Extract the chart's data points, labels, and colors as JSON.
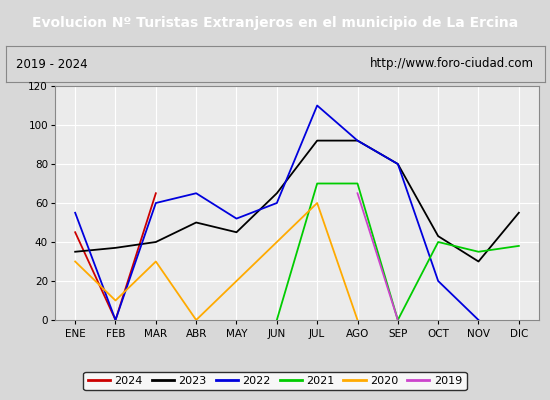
{
  "title": "Evolucion Nº Turistas Extranjeros en el municipio de La Ercina",
  "subtitle_left": "2019 - 2024",
  "subtitle_right": "http://www.foro-ciudad.com",
  "months": [
    "ENE",
    "FEB",
    "MAR",
    "ABR",
    "MAY",
    "JUN",
    "JUL",
    "AGO",
    "SEP",
    "OCT",
    "NOV",
    "DIC"
  ],
  "series": {
    "2024": {
      "color": "#cc0000",
      "data": [
        45,
        0,
        65,
        null,
        null,
        null,
        null,
        null,
        null,
        null,
        null,
        null
      ]
    },
    "2023": {
      "color": "#000000",
      "data": [
        35,
        37,
        40,
        50,
        45,
        65,
        92,
        92,
        80,
        43,
        30,
        55
      ]
    },
    "2022": {
      "color": "#0000dd",
      "data": [
        55,
        0,
        60,
        65,
        52,
        60,
        110,
        92,
        80,
        20,
        0,
        null
      ]
    },
    "2021": {
      "color": "#00cc00",
      "data": [
        null,
        null,
        null,
        null,
        null,
        0,
        70,
        70,
        0,
        40,
        35,
        38
      ]
    },
    "2020": {
      "color": "#ffaa00",
      "data": [
        30,
        10,
        30,
        0,
        null,
        null,
        60,
        0,
        null,
        null,
        null,
        null
      ]
    },
    "2019": {
      "color": "#cc44cc",
      "data": [
        null,
        null,
        null,
        null,
        null,
        null,
        null,
        65,
        0,
        null,
        null,
        null
      ]
    }
  },
  "ylim": [
    0,
    120
  ],
  "yticks": [
    0,
    20,
    40,
    60,
    80,
    100,
    120
  ],
  "title_bg_color": "#5b8dc8",
  "title_text_color": "#ffffff",
  "plot_bg_color": "#ebebeb",
  "fig_bg_color": "#d8d8d8",
  "grid_color": "#ffffff",
  "legend_order": [
    "2024",
    "2023",
    "2022",
    "2021",
    "2020",
    "2019"
  ]
}
